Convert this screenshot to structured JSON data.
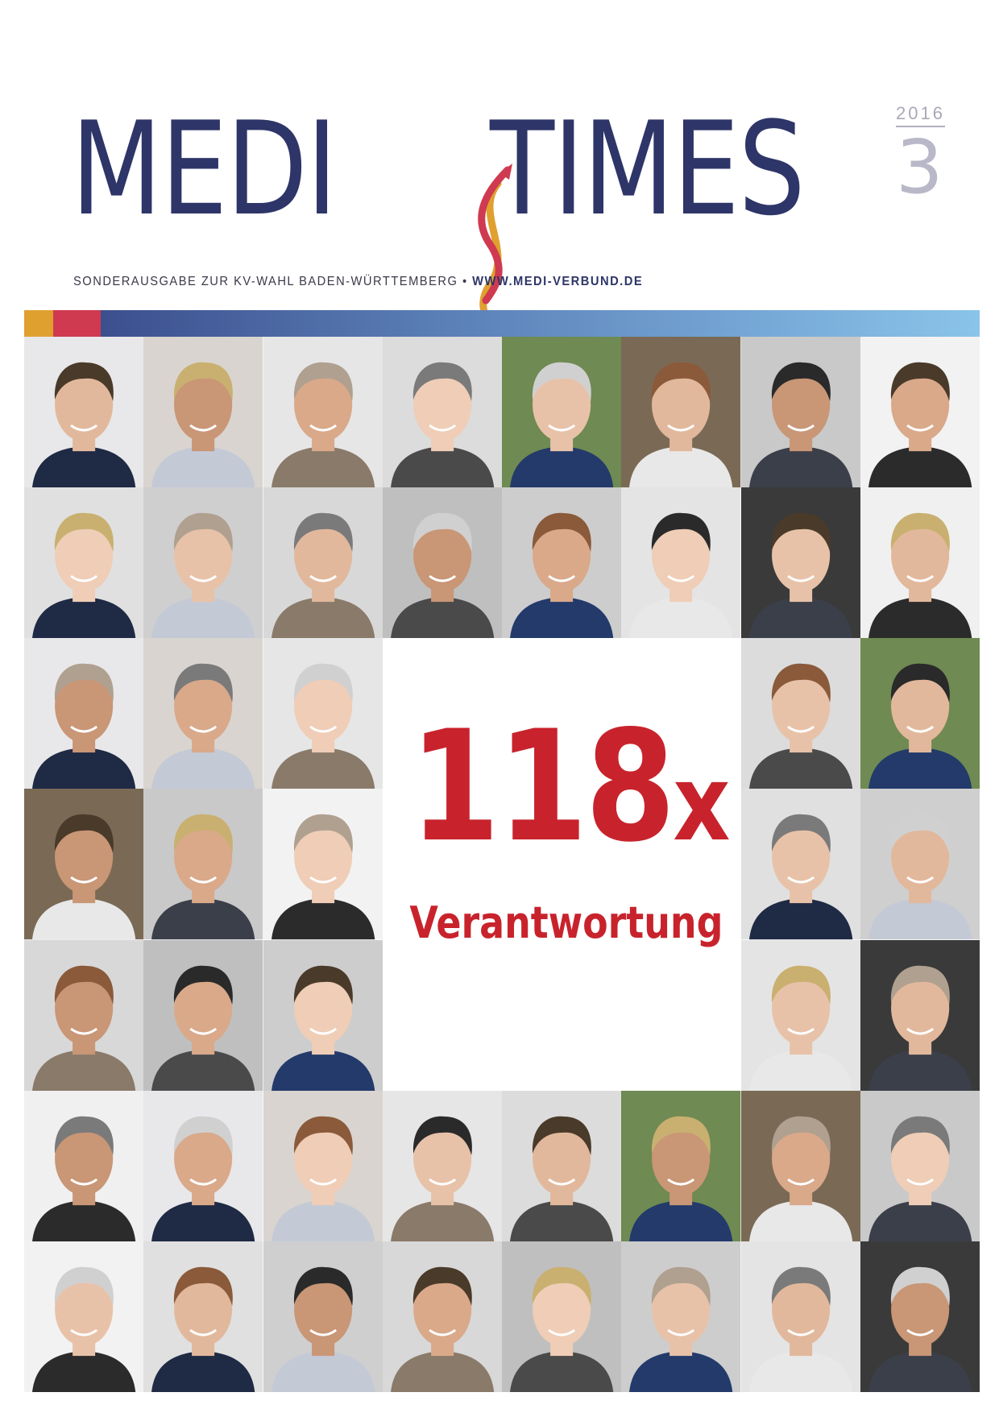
{
  "masthead": {
    "brand_left": "MEDI",
    "brand_right": "TIMES",
    "year": "2016",
    "issue": "3",
    "tagline": "SONDERAUSGABE ZUR KV-WAHL BADEN-WÜRTTEMBERG",
    "separator": "•",
    "website": "WWW.MEDI-VERBUND.DE"
  },
  "headline": {
    "number": "118",
    "multiplier": "x",
    "subtitle": "Verantwortung"
  },
  "colors": {
    "navy": "#2e3568",
    "accent_red": "#c8232c",
    "logo_orange": "#e0a030",
    "logo_red": "#cf3a50"
  },
  "portraits": {
    "count_shown": 47,
    "backgrounds": [
      "#e8e8ea",
      "#d9d4cf",
      "#e6e6e6",
      "#dcdcdc",
      "#6f8a52",
      "#7a6a55",
      "#c9c9c9",
      "#f2f2f2",
      "#e0e0e0",
      "#cfcfcf",
      "#d8d8d8",
      "#bfbfbf",
      "#cdcdcd",
      "#e4e4e4",
      "#3a3a3a",
      "#f0f0f0"
    ],
    "clothing": [
      "#1f2a44",
      "#2b2b2b",
      "#3b3f4a",
      "#e8e8e8",
      "#233a6b",
      "#4a4a4a",
      "#8a7a6a",
      "#c4c9d6"
    ]
  }
}
